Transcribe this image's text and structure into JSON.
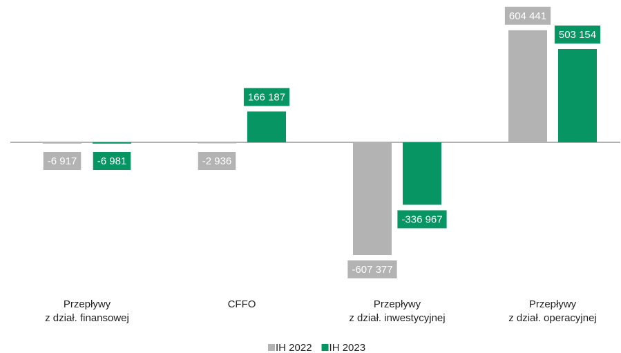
{
  "chart_data": {
    "type": "bar",
    "categories": [
      [
        "Przepływy",
        "z dział. finansowej"
      ],
      [
        "CFFO"
      ],
      [
        "Przepływy",
        "z dział. inwestycyjnej"
      ],
      [
        "Przepływy",
        "z dział. operacyjnej"
      ]
    ],
    "series": [
      {
        "name": "IH 2022",
        "color": "#b3b3b3",
        "values": [
          -6917,
          -2936,
          -607377,
          604441
        ],
        "value_labels": [
          "-6 917",
          "-2 936",
          "-607 377",
          "604 441"
        ]
      },
      {
        "name": "IH 2023",
        "color": "#079563",
        "values": [
          -6981,
          166187,
          -336967,
          503154
        ],
        "value_labels": [
          "-6 981",
          "166 187",
          "-336 967",
          "503 154"
        ]
      }
    ],
    "legend": "bottom"
  }
}
